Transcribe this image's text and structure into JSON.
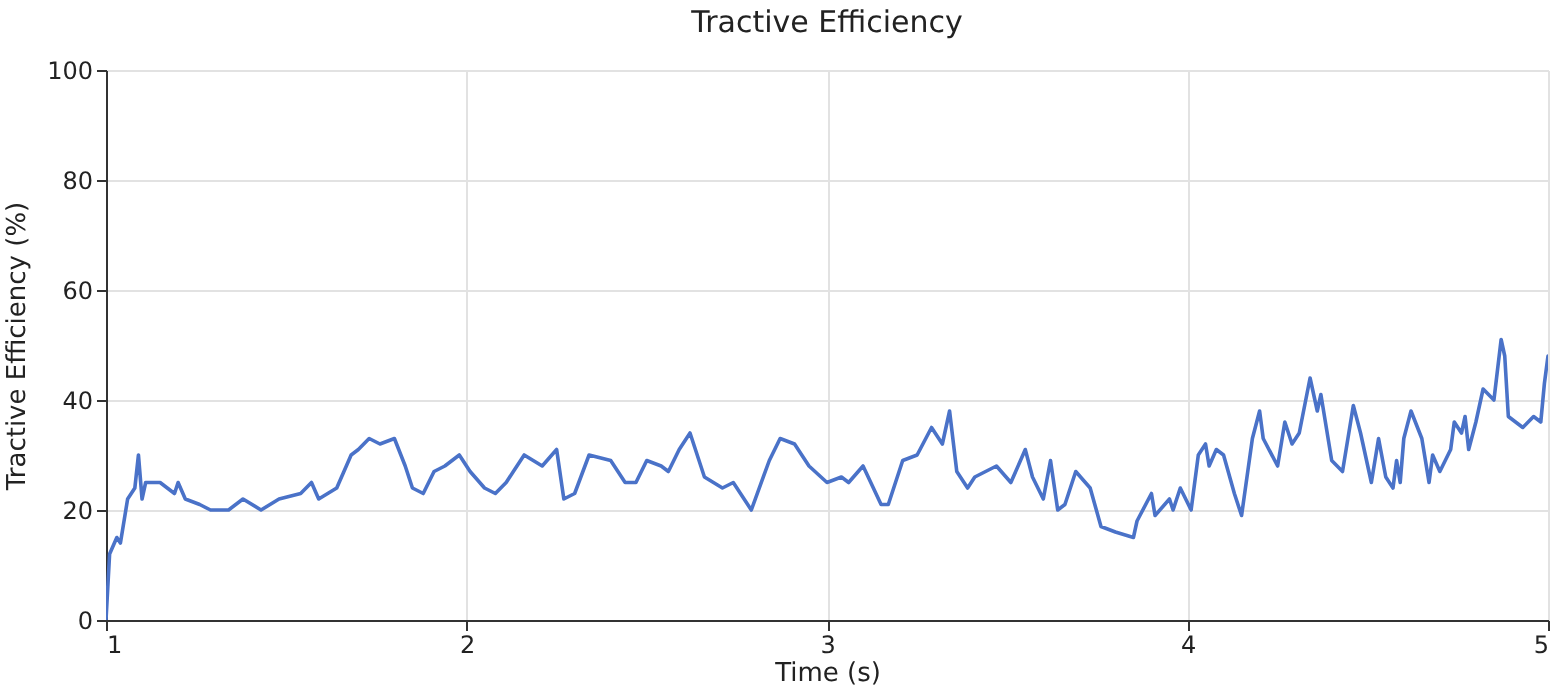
{
  "chart_data": {
    "type": "line",
    "title": "Tractive Efficiency",
    "xlabel": "Time (s)",
    "ylabel": "Tractive Efficiency (%)",
    "xlim": [
      1,
      5
    ],
    "ylim": [
      0,
      100
    ],
    "xticks": [
      1,
      2,
      3,
      4,
      5
    ],
    "yticks": [
      0,
      20,
      40,
      60,
      80,
      100
    ],
    "grid": true,
    "line_style": "solid",
    "x": [
      1.0,
      1.01,
      1.03,
      1.04,
      1.06,
      1.08,
      1.09,
      1.1,
      1.11,
      1.15,
      1.19,
      1.2,
      1.22,
      1.26,
      1.29,
      1.34,
      1.38,
      1.43,
      1.48,
      1.54,
      1.57,
      1.59,
      1.64,
      1.68,
      1.7,
      1.73,
      1.76,
      1.8,
      1.83,
      1.85,
      1.88,
      1.91,
      1.94,
      1.98,
      2.01,
      2.05,
      2.08,
      2.11,
      2.13,
      2.16,
      2.21,
      2.25,
      2.27,
      2.3,
      2.34,
      2.4,
      2.44,
      2.47,
      2.5,
      2.54,
      2.56,
      2.59,
      2.62,
      2.66,
      2.71,
      2.74,
      2.79,
      2.84,
      2.87,
      2.91,
      2.95,
      3.0,
      3.04,
      3.06,
      3.1,
      3.15,
      3.17,
      3.21,
      3.25,
      3.29,
      3.32,
      3.34,
      3.36,
      3.39,
      3.41,
      3.47,
      3.51,
      3.55,
      3.57,
      3.6,
      3.62,
      3.64,
      3.66,
      3.69,
      3.73,
      3.76,
      3.8,
      3.85,
      3.86,
      3.9,
      3.91,
      3.95,
      3.96,
      3.98,
      4.01,
      4.03,
      4.05,
      4.06,
      4.08,
      4.1,
      4.13,
      4.15,
      4.18,
      4.2,
      4.21,
      4.25,
      4.27,
      4.29,
      4.31,
      4.34,
      4.36,
      4.37,
      4.4,
      4.43,
      4.46,
      4.48,
      4.51,
      4.53,
      4.55,
      4.57,
      4.58,
      4.59,
      4.6,
      4.62,
      4.65,
      4.67,
      4.68,
      4.7,
      4.73,
      4.74,
      4.76,
      4.77,
      4.78,
      4.8,
      4.82,
      4.85,
      4.87,
      4.88,
      4.89,
      4.93,
      4.96,
      4.98,
      4.99,
      5.0
    ],
    "series": [
      {
        "color": "#4a72c8",
        "values": [
          0,
          12,
          15,
          14,
          22,
          24,
          30,
          22,
          25,
          25,
          23,
          25,
          22,
          21,
          20,
          20,
          22,
          20,
          22,
          23,
          25,
          22,
          24,
          30,
          31,
          33,
          32,
          33,
          28,
          24,
          23,
          27,
          28,
          30,
          27,
          24,
          23,
          25,
          27,
          30,
          28,
          31,
          22,
          23,
          30,
          29,
          25,
          25,
          29,
          28,
          27,
          31,
          34,
          26,
          24,
          25,
          20,
          29,
          33,
          32,
          28,
          25,
          26,
          25,
          28,
          21,
          21,
          29,
          30,
          35,
          32,
          38,
          27,
          24,
          26,
          28,
          25,
          31,
          26,
          22,
          29,
          20,
          21,
          27,
          24,
          17,
          16,
          15,
          18,
          23,
          19,
          22,
          20,
          24,
          20,
          30,
          32,
          28,
          31,
          30,
          23,
          19,
          33,
          38,
          33,
          28,
          36,
          32,
          34,
          44,
          38,
          41,
          29,
          27,
          39,
          34,
          25,
          33,
          26,
          24,
          29,
          25,
          33,
          38,
          33,
          25,
          30,
          27,
          31,
          36,
          34,
          37,
          31,
          36,
          42,
          40,
          51,
          48,
          37,
          35,
          37,
          36,
          43,
          48
        ]
      }
    ]
  }
}
